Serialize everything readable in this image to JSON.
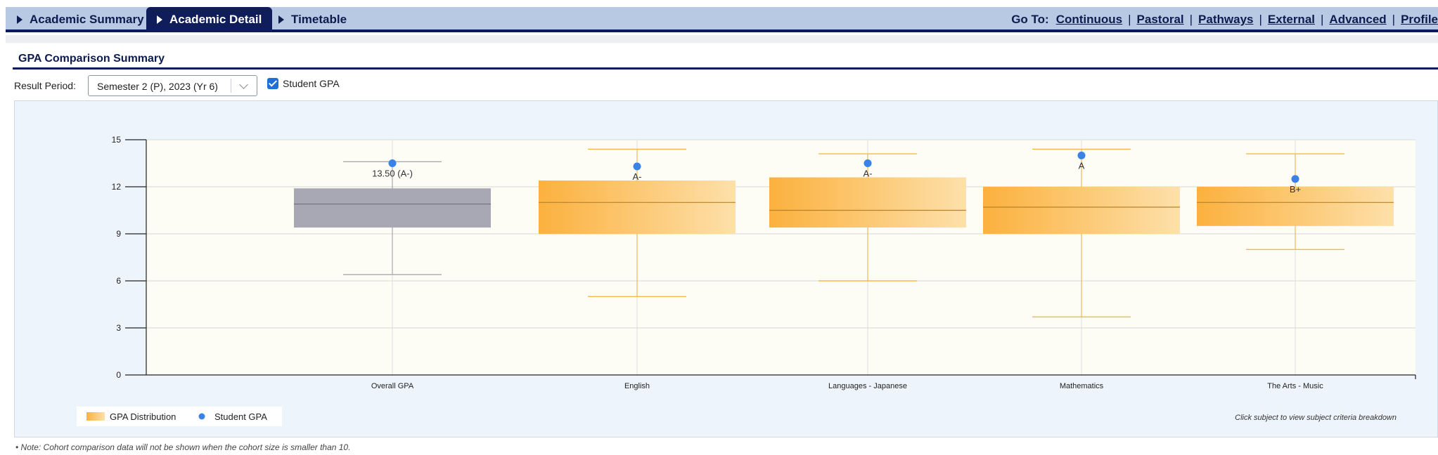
{
  "tabs": [
    {
      "label": "Academic Summary",
      "active": false
    },
    {
      "label": "Academic Detail",
      "active": true
    },
    {
      "label": "Timetable",
      "active": false
    }
  ],
  "goto": {
    "label": "Go To:",
    "links": [
      "Continuous",
      "Pastoral",
      "Pathways",
      "External",
      "Advanced",
      "Profile"
    ]
  },
  "section": {
    "title": "GPA Comparison Summary"
  },
  "filters": {
    "result_period_label": "Result Period:",
    "result_period_value": "Semester 2 (P), 2023 (Yr 6)",
    "student_gpa_label": "Student GPA",
    "student_gpa_checked": true
  },
  "chart_data": {
    "type": "boxplot",
    "categories": [
      "Overall GPA",
      "English",
      "Languages - Japanese",
      "Mathematics",
      "The Arts - Music"
    ],
    "ylim": [
      0,
      15
    ],
    "yticks": [
      0,
      3,
      6,
      9,
      12,
      15
    ],
    "grid": true,
    "legend_position": "bottom-left",
    "legend": [
      "GPA Distribution",
      "Student GPA"
    ],
    "colors": {
      "overall_box": "#a7a8b4",
      "subject_box_dark": "#fbb13e",
      "subject_box_light": "#fde0aa",
      "whisker_subject": "#f5b750",
      "whisker_overall": "#a8a8b0",
      "student_dot": "#3b82e6",
      "plot_bg": "#fdfdf6"
    },
    "series": [
      {
        "name": "GPA Distribution",
        "boxes": [
          {
            "min": 6.4,
            "q1": 9.4,
            "median": 10.9,
            "q3": 11.9,
            "max": 13.6
          },
          {
            "min": 5.0,
            "q1": 9.0,
            "median": 11.0,
            "q3": 12.4,
            "max": 14.4
          },
          {
            "min": 6.0,
            "q1": 9.4,
            "median": 10.5,
            "q3": 12.6,
            "max": 14.1
          },
          {
            "min": 3.7,
            "q1": 9.0,
            "median": 10.7,
            "q3": 12.0,
            "max": 14.4
          },
          {
            "min": 8.0,
            "q1": 9.5,
            "median": 11.0,
            "q3": 12.0,
            "max": 14.1
          }
        ]
      },
      {
        "name": "Student GPA",
        "values": [
          13.5,
          13.3,
          13.5,
          14.0,
          12.5
        ],
        "labels": [
          "13.50 (A-)",
          "A-",
          "A-",
          "A",
          "B+"
        ]
      }
    ],
    "annotation": "Click subject to view subject criteria breakdown"
  },
  "footnote": "• Note: Cohort comparison data will not be shown when the cohort size is smaller than 10."
}
